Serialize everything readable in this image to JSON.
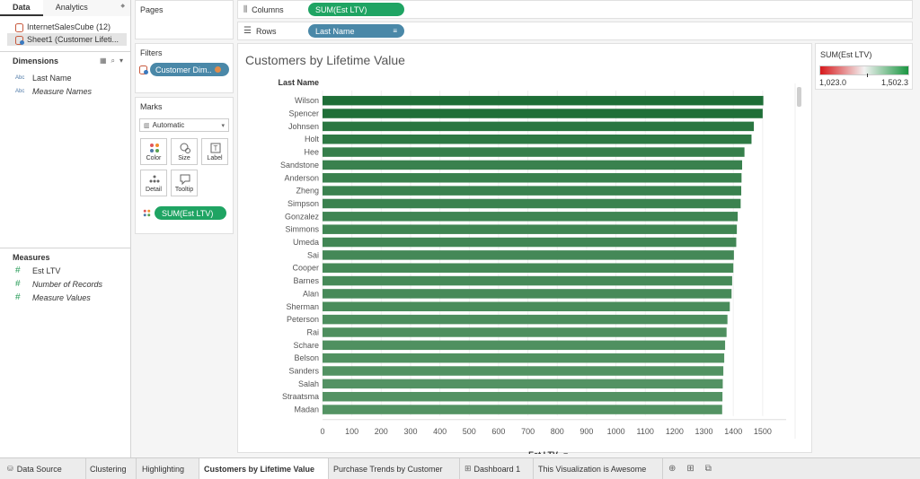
{
  "left_pane": {
    "tabs": {
      "data": "Data",
      "analytics": "Analytics",
      "analytics_arrow": "◆"
    },
    "data_sources": [
      {
        "label": "InternetSalesCube (12)"
      },
      {
        "label": "Sheet1 (Customer Lifeti..."
      }
    ],
    "dimensions": {
      "title": "Dimensions",
      "fields": [
        {
          "type": "Abc",
          "label": "Last Name"
        },
        {
          "type": "Abc",
          "label": "Measure Names"
        }
      ]
    },
    "measures": {
      "title": "Measures",
      "fields": [
        {
          "type": "#",
          "label": "Est LTV"
        },
        {
          "type": "#",
          "label": "Number of Records"
        },
        {
          "type": "#",
          "label": "Measure Values"
        }
      ]
    }
  },
  "pages": {
    "title": "Pages"
  },
  "filters": {
    "title": "Filters",
    "pill": "Customer Dim.."
  },
  "marks": {
    "title": "Marks",
    "type": "Automatic",
    "buttons": {
      "color": "Color",
      "size": "Size",
      "label": "Label",
      "detail": "Detail",
      "tooltip": "Tooltip"
    },
    "pill": "SUM(Est LTV)"
  },
  "shelves": {
    "columns_label": "Columns",
    "columns_pill": "SUM(Est LTV)",
    "rows_label": "Rows",
    "rows_pill": "Last Name"
  },
  "legend": {
    "title": "SUM(Est LTV)",
    "min": "1,023.0",
    "max": "1,502.3",
    "colors": {
      "low": "#d7191c",
      "mid": "#f2f2f2",
      "high": "#1a9641"
    }
  },
  "bottom_tabs": [
    {
      "label": "Data Source",
      "icon": "database-icon"
    },
    {
      "label": "Clustering"
    },
    {
      "label": "Highlighting"
    },
    {
      "label": "Customers by Lifetime Value",
      "active": true
    },
    {
      "label": "Purchase Trends by Customer"
    },
    {
      "label": "Dashboard 1",
      "icon": "dashboard-icon"
    },
    {
      "label": "This Visualization is Awesome"
    }
  ],
  "chart_data": {
    "type": "bar",
    "orientation": "horizontal",
    "title": "Customers by Lifetime Value",
    "row_header": "Last Name",
    "xlabel": "Est LTV",
    "xlim": [
      0,
      1580
    ],
    "x_ticks": [
      0,
      100,
      200,
      300,
      400,
      500,
      600,
      700,
      800,
      900,
      1000,
      1100,
      1200,
      1300,
      1400,
      1500
    ],
    "color_range": [
      1023.0,
      1502.3
    ],
    "categories": [
      "Wilson",
      "Spencer",
      "Johnsen",
      "Holt",
      "Hee",
      "Sandstone",
      "Anderson",
      "Zheng",
      "Simpson",
      "Gonzalez",
      "Simmons",
      "Umeda",
      "Sai",
      "Cooper",
      "Barnes",
      "Alan",
      "Sherman",
      "Peterson",
      "Rai",
      "Schare",
      "Belson",
      "Sanders",
      "Salah",
      "Straatsma",
      "Madan"
    ],
    "values": [
      1502.3,
      1500,
      1470,
      1462,
      1438,
      1430,
      1428,
      1427,
      1425,
      1415,
      1412,
      1410,
      1402,
      1400,
      1396,
      1394,
      1388,
      1380,
      1377,
      1372,
      1369,
      1366,
      1364,
      1363,
      1362
    ]
  }
}
